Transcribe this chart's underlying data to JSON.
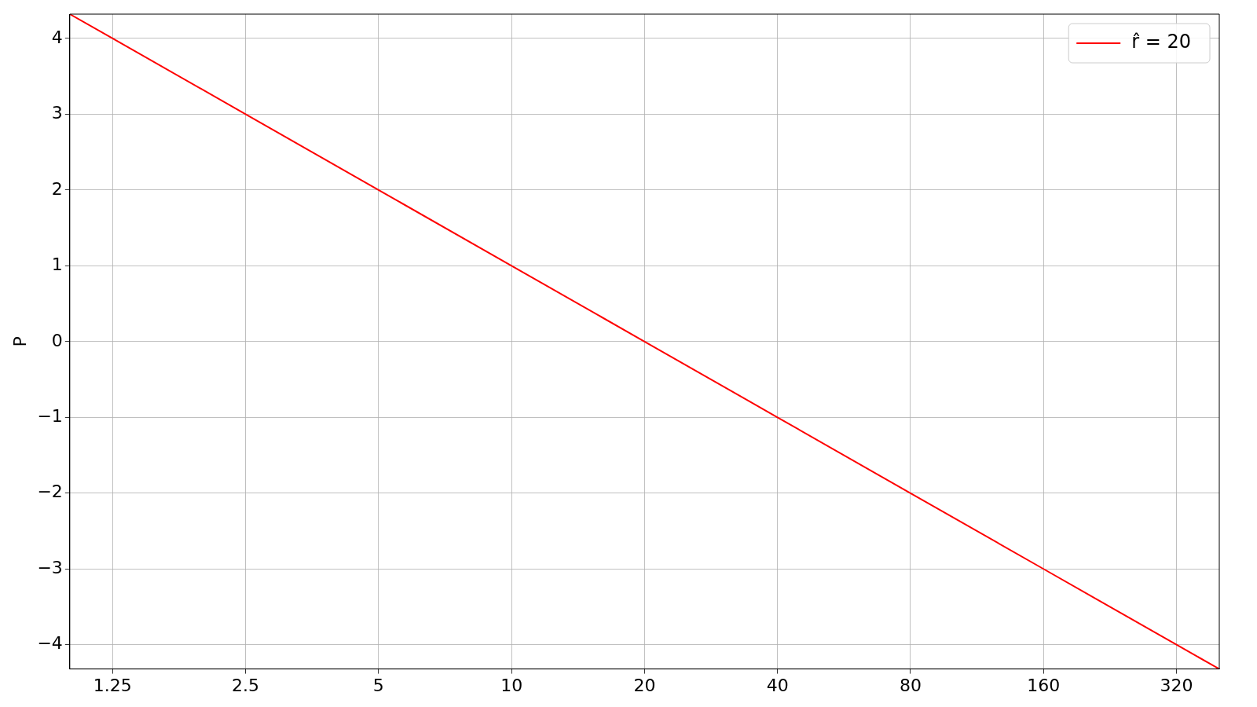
{
  "chart_data": {
    "type": "line",
    "ylabel": "P",
    "x": [
      1,
      1.25,
      2.5,
      5,
      10,
      20,
      40,
      80,
      160,
      320,
      400
    ],
    "series": [
      {
        "name": "r̂ = 20",
        "color": "#ff0000",
        "values": [
          4.32,
          4,
          3,
          2,
          1,
          0,
          -1,
          -2,
          -3,
          -4,
          -4.32
        ]
      }
    ],
    "log": "x",
    "xlim": [
      1,
      400
    ],
    "xticks": [
      1.25,
      2.5,
      5,
      10,
      20,
      40,
      80,
      160,
      320
    ],
    "ylim": [
      -4.32,
      4.32
    ],
    "yticks": [
      {
        "value": -4,
        "label": "−4"
      },
      {
        "value": -3,
        "label": "−3"
      },
      {
        "value": -2,
        "label": "−2"
      },
      {
        "value": -1,
        "label": "−1"
      },
      0,
      1,
      2,
      3,
      4
    ],
    "grid": true,
    "legend": "top right",
    "marker": "none",
    "line_style": "solid"
  }
}
